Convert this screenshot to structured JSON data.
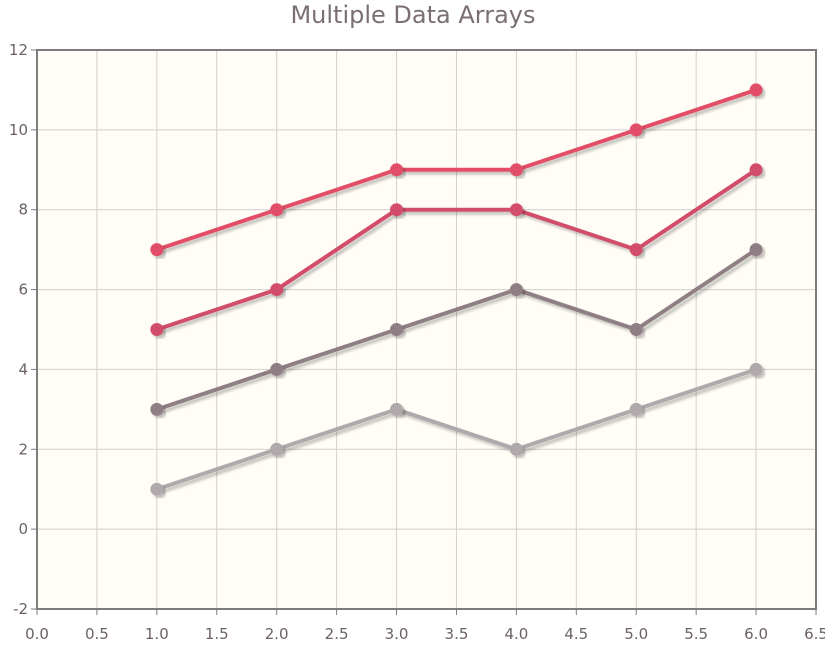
{
  "chart_data": {
    "type": "line",
    "title": "Multiple Data Arrays",
    "xlabel": "",
    "ylabel": "",
    "xlim": [
      0,
      6.5
    ],
    "ylim": [
      -2,
      12
    ],
    "x_ticks": [
      0,
      0.5,
      1,
      1.5,
      2,
      2.5,
      3,
      3.5,
      4,
      4.5,
      5,
      5.5,
      6,
      6.5
    ],
    "x_tick_labels": [
      "0.0",
      "0.5",
      "1.0",
      "1.5",
      "2.0",
      "2.5",
      "3.0",
      "3.5",
      "4.0",
      "4.5",
      "5.0",
      "5.5",
      "6.0",
      "6.5"
    ],
    "y_ticks": [
      -2,
      0,
      2,
      4,
      6,
      8,
      10,
      12
    ],
    "y_tick_labels": [
      "-2",
      "0",
      "2",
      "4",
      "6",
      "8",
      "10",
      "12"
    ],
    "grid": true,
    "background_color": "#fffdf5",
    "axis_color": "#7e7b7d",
    "grid_color": "#d1d0d0",
    "series": [
      {
        "color": "#e24d67",
        "points": [
          [
            1,
            7
          ],
          [
            2,
            8
          ],
          [
            3,
            9
          ],
          [
            4,
            9
          ],
          [
            5,
            10
          ],
          [
            6,
            11
          ]
        ]
      },
      {
        "color": "#d14e69",
        "points": [
          [
            1,
            5
          ],
          [
            2,
            6
          ],
          [
            3,
            8
          ],
          [
            4,
            8
          ],
          [
            5,
            7
          ],
          [
            6,
            9
          ]
        ]
      },
      {
        "color": "#8f7f84",
        "points": [
          [
            1,
            3
          ],
          [
            2,
            4
          ],
          [
            3,
            5
          ],
          [
            4,
            6
          ],
          [
            5,
            5
          ],
          [
            6,
            7
          ]
        ]
      },
      {
        "color": "#b0a9ab",
        "points": [
          [
            1,
            1
          ],
          [
            2,
            2
          ],
          [
            3,
            3
          ],
          [
            4,
            2
          ],
          [
            5,
            3
          ],
          [
            6,
            4
          ]
        ]
      }
    ]
  }
}
